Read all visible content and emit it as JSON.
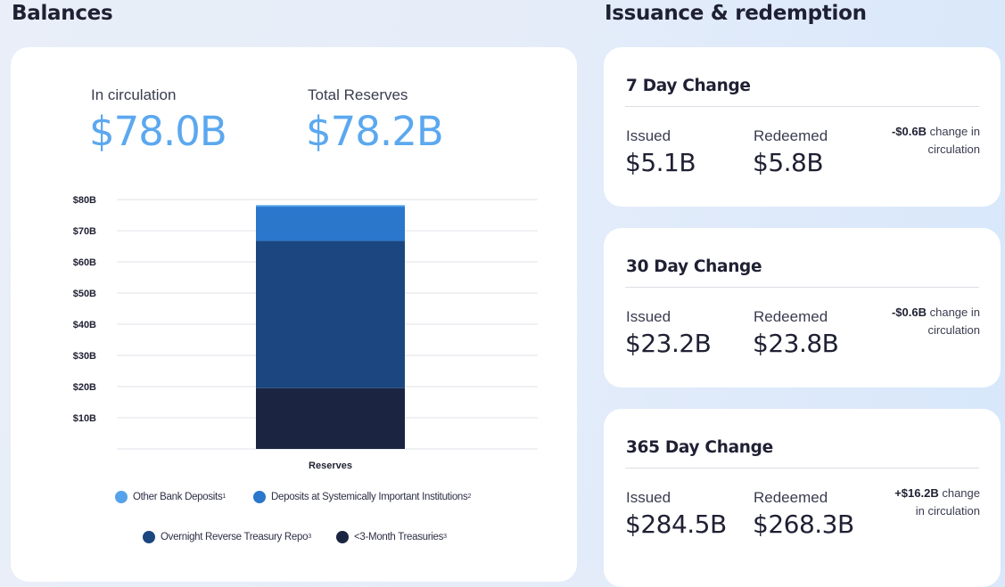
{
  "balances": {
    "title": "Balances",
    "in_circulation": {
      "label": "In circulation",
      "value": "$78.0B"
    },
    "total_reserves": {
      "label": "Total Reserves",
      "value": "$78.2B"
    }
  },
  "chart_data": {
    "type": "bar",
    "stacked": true,
    "categories": [
      "Reserves"
    ],
    "series": [
      {
        "name": "<3-Month Treasuries",
        "footnote": "3",
        "color": "#1b2541",
        "values": [
          19.5
        ]
      },
      {
        "name": "Overnight Reverse Treasury Repo",
        "footnote": "3",
        "color": "#1b467f",
        "values": [
          47.2
        ]
      },
      {
        "name": "Deposits at Systemically Important Institutions",
        "footnote": "2",
        "color": "#2a77cc",
        "values": [
          11.0
        ]
      },
      {
        "name": "Other Bank Deposits",
        "footnote": "1",
        "color": "#55a2ea",
        "values": [
          0.5
        ]
      }
    ],
    "ylim": [
      0,
      80
    ],
    "ytick_values": [
      10,
      20,
      30,
      40,
      50,
      60,
      70,
      80
    ],
    "ytick_labels": [
      "$10B",
      "$20B",
      "$30B",
      "$40B",
      "$50B",
      "$60B",
      "$70B",
      "$80B"
    ],
    "grid": true,
    "legend_position": "bottom",
    "legend_order": [
      3,
      2,
      1,
      0
    ]
  },
  "issuance": {
    "title": "Issuance & redemption",
    "cards": [
      {
        "title": "7 Day Change",
        "issued_label": "Issued",
        "issued": "$5.1B",
        "redeemed_label": "Redeemed",
        "redeemed": "$5.8B",
        "change": "-$0.6B",
        "change_text_1": " change in",
        "change_text_2": "circulation"
      },
      {
        "title": "30 Day Change",
        "issued_label": "Issued",
        "issued": "$23.2B",
        "redeemed_label": "Redeemed",
        "redeemed": "$23.8B",
        "change": "-$0.6B",
        "change_text_1": " change in",
        "change_text_2": "circulation"
      },
      {
        "title": "365 Day Change",
        "issued_label": "Issued",
        "issued": "$284.5B",
        "redeemed_label": "Redeemed",
        "redeemed": "$268.3B",
        "change": "+$16.2B",
        "change_text_1": " change",
        "change_text_2": "in circulation"
      }
    ]
  }
}
